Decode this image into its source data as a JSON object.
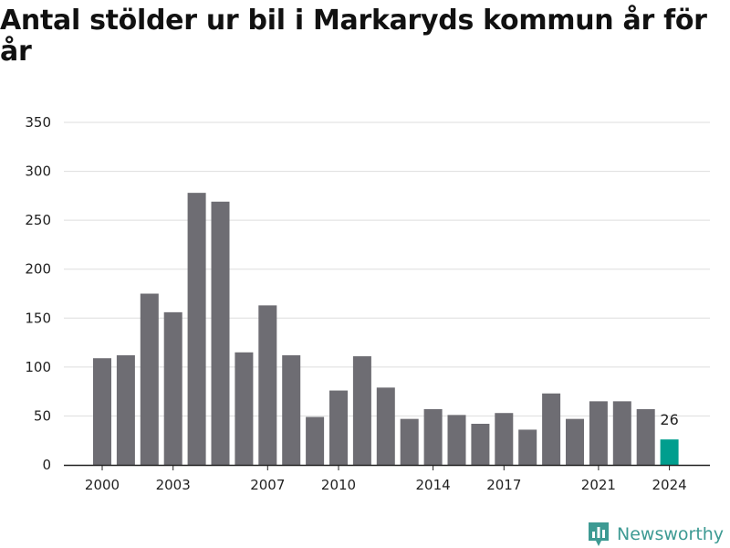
{
  "title": "Antal stölder ur bil i Markaryds kommun år för år",
  "brand": {
    "name": "Newsworthy",
    "icon": "newsworthy-logo-icon"
  },
  "colors": {
    "bar": "#6e6d73",
    "highlight": "#009e8e",
    "grid": "#dddddd",
    "brand": "#3d9a93"
  },
  "chart_data": {
    "type": "bar",
    "title": "Antal stölder ur bil i Markaryds kommun år för år",
    "xlabel": "",
    "ylabel": "",
    "categories": [
      "2000",
      "2001",
      "2002",
      "2003",
      "2004",
      "2005",
      "2006",
      "2007",
      "2008",
      "2009",
      "2010",
      "2011",
      "2012",
      "2013",
      "2014",
      "2015",
      "2016",
      "2017",
      "2018",
      "2019",
      "2020",
      "2021",
      "2022",
      "2023",
      "2024"
    ],
    "values": [
      109,
      112,
      175,
      156,
      278,
      269,
      115,
      163,
      112,
      49,
      76,
      111,
      79,
      47,
      57,
      51,
      42,
      53,
      36,
      73,
      47,
      65,
      65,
      57,
      26
    ],
    "ylim": [
      0,
      350
    ],
    "yticks": [
      0,
      50,
      100,
      150,
      200,
      250,
      300,
      350
    ],
    "xtick_labels": [
      "2000",
      "2003",
      "2007",
      "2010",
      "2014",
      "2017",
      "2021",
      "2024"
    ],
    "highlight": "2024",
    "data_labels": [
      {
        "category": "2024",
        "text": "26"
      }
    ],
    "grid": true,
    "legend": "none"
  }
}
